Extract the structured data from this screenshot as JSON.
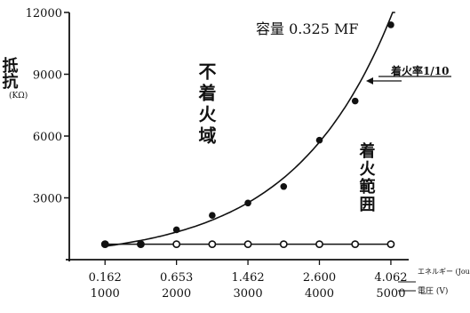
{
  "chart_data": {
    "type": "scatter",
    "title": "容量 0.325 MF",
    "ylabel": "抵抗",
    "yunit": "(KΩ)",
    "ylim": [
      0,
      12000
    ],
    "yticks": [
      "12000",
      "9000",
      "6000",
      "3000"
    ],
    "x_ticks_energy": [
      "0.162",
      "0.653",
      "1.462",
      "2.600",
      "4.062"
    ],
    "x_ticks_voltage": [
      "1000",
      "2000",
      "3000",
      "4000",
      "5000"
    ],
    "x_axis_energy_label": "エネルギー (Joul)",
    "x_axis_voltage_label": "電圧 (V)",
    "xlim": [
      500,
      5150
    ],
    "region_labels": {
      "no_ignition": "不着火域",
      "ignition": "着火範囲"
    },
    "annotation": "着火率1/10",
    "series": [
      {
        "marker": "filled",
        "points": [
          {
            "x": 1000,
            "y": 750
          },
          {
            "x": 1500,
            "y": 760
          },
          {
            "x": 2000,
            "y": 1450
          },
          {
            "x": 2500,
            "y": 2150
          },
          {
            "x": 3000,
            "y": 2750
          },
          {
            "x": 3500,
            "y": 3550
          },
          {
            "x": 4000,
            "y": 5800
          },
          {
            "x": 4500,
            "y": 7700
          },
          {
            "x": 5000,
            "y": 11400
          }
        ]
      },
      {
        "marker": "open",
        "points": [
          {
            "x": 1000,
            "y": 750
          },
          {
            "x": 1500,
            "y": 750
          },
          {
            "x": 2000,
            "y": 750
          },
          {
            "x": 2500,
            "y": 750
          },
          {
            "x": 3000,
            "y": 750
          },
          {
            "x": 3500,
            "y": 750
          },
          {
            "x": 4000,
            "y": 750
          },
          {
            "x": 4500,
            "y": 750
          },
          {
            "x": 5000,
            "y": 750
          }
        ]
      }
    ],
    "curve": {
      "type": "exponential",
      "a": 314,
      "b": 0.000725
    }
  }
}
